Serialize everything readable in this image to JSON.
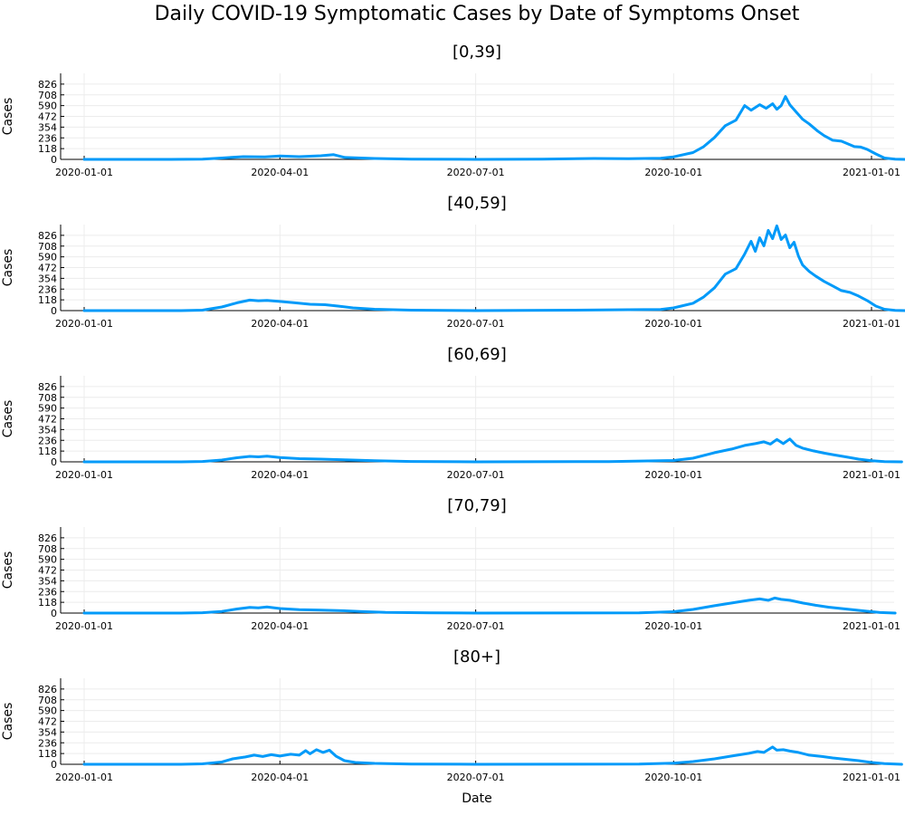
{
  "chart_data": {
    "type": "line",
    "title": "Daily COVID-19 Symptomatic Cases by Date of Symptoms Onset",
    "xlabel": "Date",
    "ylabel": "Cases",
    "x_range": [
      "2020-01-01",
      "2021-01-01"
    ],
    "x_ticks": [
      "2020-01-01",
      "2020-04-01",
      "2020-07-01",
      "2020-10-01",
      "2021-01-01"
    ],
    "y_ticks": [
      0,
      118,
      236,
      354,
      472,
      590,
      708,
      826
    ],
    "ylim": [
      0,
      944
    ],
    "color": "#009af9",
    "grid": true,
    "panels": [
      {
        "title": "[0,39]",
        "points": [
          [
            "2020-01-01",
            0
          ],
          [
            "2020-02-10",
            0
          ],
          [
            "2020-02-25",
            3
          ],
          [
            "2020-03-05",
            15
          ],
          [
            "2020-03-15",
            30
          ],
          [
            "2020-03-25",
            28
          ],
          [
            "2020-04-01",
            38
          ],
          [
            "2020-04-10",
            30
          ],
          [
            "2020-04-20",
            40
          ],
          [
            "2020-04-26",
            52
          ],
          [
            "2020-05-01",
            22
          ],
          [
            "2020-05-15",
            10
          ],
          [
            "2020-06-01",
            3
          ],
          [
            "2020-07-01",
            0
          ],
          [
            "2020-08-01",
            3
          ],
          [
            "2020-08-25",
            10
          ],
          [
            "2020-09-10",
            8
          ],
          [
            "2020-09-25",
            12
          ],
          [
            "2020-10-01",
            28
          ],
          [
            "2020-10-10",
            75
          ],
          [
            "2020-10-15",
            140
          ],
          [
            "2020-10-20",
            240
          ],
          [
            "2020-10-25",
            370
          ],
          [
            "2020-10-30",
            430
          ],
          [
            "2020-11-03",
            590
          ],
          [
            "2020-11-06",
            540
          ],
          [
            "2020-11-10",
            600
          ],
          [
            "2020-11-13",
            560
          ],
          [
            "2020-11-16",
            610
          ],
          [
            "2020-11-18",
            550
          ],
          [
            "2020-11-20",
            590
          ],
          [
            "2020-11-22",
            690
          ],
          [
            "2020-11-24",
            600
          ],
          [
            "2020-11-27",
            520
          ],
          [
            "2020-11-30",
            440
          ],
          [
            "2020-12-03",
            390
          ],
          [
            "2020-12-07",
            310
          ],
          [
            "2020-12-10",
            260
          ],
          [
            "2020-12-14",
            210
          ],
          [
            "2020-12-18",
            200
          ],
          [
            "2020-12-21",
            170
          ],
          [
            "2020-12-24",
            140
          ],
          [
            "2020-12-27",
            135
          ],
          [
            "2020-12-30",
            110
          ],
          [
            "2021-01-03",
            60
          ],
          [
            "2021-01-07",
            15
          ],
          [
            "2021-01-12",
            2
          ],
          [
            "2021-01-18",
            0
          ]
        ]
      },
      {
        "title": "[40,59]",
        "points": [
          [
            "2020-01-01",
            0
          ],
          [
            "2020-02-15",
            0
          ],
          [
            "2020-02-25",
            5
          ],
          [
            "2020-03-05",
            40
          ],
          [
            "2020-03-12",
            85
          ],
          [
            "2020-03-18",
            115
          ],
          [
            "2020-03-22",
            108
          ],
          [
            "2020-03-26",
            112
          ],
          [
            "2020-04-01",
            100
          ],
          [
            "2020-04-08",
            85
          ],
          [
            "2020-04-15",
            70
          ],
          [
            "2020-04-22",
            65
          ],
          [
            "2020-04-28",
            50
          ],
          [
            "2020-05-05",
            30
          ],
          [
            "2020-05-15",
            15
          ],
          [
            "2020-06-01",
            5
          ],
          [
            "2020-07-01",
            0
          ],
          [
            "2020-08-15",
            5
          ],
          [
            "2020-09-10",
            10
          ],
          [
            "2020-09-25",
            12
          ],
          [
            "2020-10-01",
            30
          ],
          [
            "2020-10-10",
            80
          ],
          [
            "2020-10-15",
            150
          ],
          [
            "2020-10-20",
            250
          ],
          [
            "2020-10-25",
            400
          ],
          [
            "2020-10-30",
            460
          ],
          [
            "2020-11-03",
            620
          ],
          [
            "2020-11-06",
            760
          ],
          [
            "2020-11-08",
            650
          ],
          [
            "2020-11-10",
            800
          ],
          [
            "2020-11-12",
            710
          ],
          [
            "2020-11-14",
            880
          ],
          [
            "2020-11-16",
            790
          ],
          [
            "2020-11-18",
            930
          ],
          [
            "2020-11-20",
            780
          ],
          [
            "2020-11-22",
            830
          ],
          [
            "2020-11-24",
            690
          ],
          [
            "2020-11-26",
            750
          ],
          [
            "2020-11-28",
            600
          ],
          [
            "2020-11-30",
            500
          ],
          [
            "2020-12-03",
            430
          ],
          [
            "2020-12-06",
            380
          ],
          [
            "2020-12-10",
            320
          ],
          [
            "2020-12-14",
            270
          ],
          [
            "2020-12-18",
            220
          ],
          [
            "2020-12-22",
            200
          ],
          [
            "2020-12-26",
            160
          ],
          [
            "2020-12-30",
            110
          ],
          [
            "2021-01-03",
            50
          ],
          [
            "2021-01-07",
            15
          ],
          [
            "2021-01-12",
            2
          ],
          [
            "2021-01-18",
            0
          ]
        ]
      },
      {
        "title": "[60,69]",
        "points": [
          [
            "2020-01-01",
            0
          ],
          [
            "2020-02-15",
            0
          ],
          [
            "2020-02-25",
            4
          ],
          [
            "2020-03-05",
            20
          ],
          [
            "2020-03-12",
            45
          ],
          [
            "2020-03-18",
            60
          ],
          [
            "2020-03-22",
            55
          ],
          [
            "2020-03-26",
            62
          ],
          [
            "2020-04-01",
            48
          ],
          [
            "2020-04-10",
            35
          ],
          [
            "2020-04-20",
            30
          ],
          [
            "2020-05-01",
            22
          ],
          [
            "2020-05-15",
            12
          ],
          [
            "2020-06-01",
            4
          ],
          [
            "2020-07-01",
            0
          ],
          [
            "2020-09-01",
            3
          ],
          [
            "2020-10-01",
            15
          ],
          [
            "2020-10-10",
            40
          ],
          [
            "2020-10-20",
            100
          ],
          [
            "2020-10-28",
            140
          ],
          [
            "2020-11-03",
            180
          ],
          [
            "2020-11-08",
            200
          ],
          [
            "2020-11-12",
            220
          ],
          [
            "2020-11-15",
            195
          ],
          [
            "2020-11-18",
            245
          ],
          [
            "2020-11-21",
            200
          ],
          [
            "2020-11-24",
            250
          ],
          [
            "2020-11-27",
            180
          ],
          [
            "2020-11-30",
            150
          ],
          [
            "2020-12-05",
            120
          ],
          [
            "2020-12-10",
            95
          ],
          [
            "2020-12-15",
            75
          ],
          [
            "2020-12-20",
            55
          ],
          [
            "2020-12-26",
            30
          ],
          [
            "2021-01-01",
            12
          ],
          [
            "2021-01-07",
            3
          ],
          [
            "2021-01-15",
            0
          ]
        ]
      },
      {
        "title": "[70,79]",
        "points": [
          [
            "2020-01-01",
            0
          ],
          [
            "2020-02-15",
            0
          ],
          [
            "2020-02-25",
            4
          ],
          [
            "2020-03-05",
            18
          ],
          [
            "2020-03-12",
            45
          ],
          [
            "2020-03-18",
            62
          ],
          [
            "2020-03-22",
            58
          ],
          [
            "2020-03-26",
            68
          ],
          [
            "2020-04-01",
            50
          ],
          [
            "2020-04-10",
            38
          ],
          [
            "2020-04-20",
            32
          ],
          [
            "2020-04-28",
            28
          ],
          [
            "2020-05-08",
            18
          ],
          [
            "2020-05-20",
            8
          ],
          [
            "2020-06-10",
            2
          ],
          [
            "2020-07-01",
            0
          ],
          [
            "2020-09-15",
            3
          ],
          [
            "2020-10-01",
            15
          ],
          [
            "2020-10-10",
            40
          ],
          [
            "2020-10-20",
            80
          ],
          [
            "2020-10-28",
            110
          ],
          [
            "2020-11-05",
            140
          ],
          [
            "2020-11-10",
            155
          ],
          [
            "2020-11-14",
            140
          ],
          [
            "2020-11-17",
            165
          ],
          [
            "2020-11-20",
            150
          ],
          [
            "2020-11-24",
            140
          ],
          [
            "2020-11-30",
            110
          ],
          [
            "2020-12-06",
            85
          ],
          [
            "2020-12-12",
            65
          ],
          [
            "2020-12-18",
            50
          ],
          [
            "2020-12-24",
            35
          ],
          [
            "2020-12-30",
            20
          ],
          [
            "2021-01-05",
            6
          ],
          [
            "2021-01-12",
            0
          ]
        ]
      },
      {
        "title": "[80+]",
        "points": [
          [
            "2020-01-01",
            0
          ],
          [
            "2020-02-15",
            0
          ],
          [
            "2020-02-25",
            5
          ],
          [
            "2020-03-05",
            25
          ],
          [
            "2020-03-10",
            60
          ],
          [
            "2020-03-16",
            80
          ],
          [
            "2020-03-20",
            100
          ],
          [
            "2020-03-24",
            85
          ],
          [
            "2020-03-28",
            105
          ],
          [
            "2020-04-01",
            90
          ],
          [
            "2020-04-06",
            110
          ],
          [
            "2020-04-10",
            100
          ],
          [
            "2020-04-13",
            150
          ],
          [
            "2020-04-15",
            115
          ],
          [
            "2020-04-18",
            160
          ],
          [
            "2020-04-21",
            130
          ],
          [
            "2020-04-24",
            155
          ],
          [
            "2020-04-27",
            90
          ],
          [
            "2020-05-01",
            40
          ],
          [
            "2020-05-06",
            20
          ],
          [
            "2020-05-15",
            10
          ],
          [
            "2020-06-01",
            3
          ],
          [
            "2020-07-01",
            0
          ],
          [
            "2020-09-15",
            2
          ],
          [
            "2020-10-01",
            12
          ],
          [
            "2020-10-10",
            30
          ],
          [
            "2020-10-20",
            60
          ],
          [
            "2020-10-28",
            90
          ],
          [
            "2020-11-05",
            120
          ],
          [
            "2020-11-09",
            140
          ],
          [
            "2020-11-12",
            130
          ],
          [
            "2020-11-14",
            160
          ],
          [
            "2020-11-16",
            190
          ],
          [
            "2020-11-18",
            155
          ],
          [
            "2020-11-21",
            160
          ],
          [
            "2020-11-24",
            145
          ],
          [
            "2020-11-28",
            130
          ],
          [
            "2020-12-03",
            100
          ],
          [
            "2020-12-09",
            85
          ],
          [
            "2020-12-14",
            70
          ],
          [
            "2020-12-20",
            55
          ],
          [
            "2020-12-26",
            40
          ],
          [
            "2021-01-01",
            20
          ],
          [
            "2021-01-07",
            8
          ],
          [
            "2021-01-15",
            0
          ]
        ]
      }
    ]
  }
}
